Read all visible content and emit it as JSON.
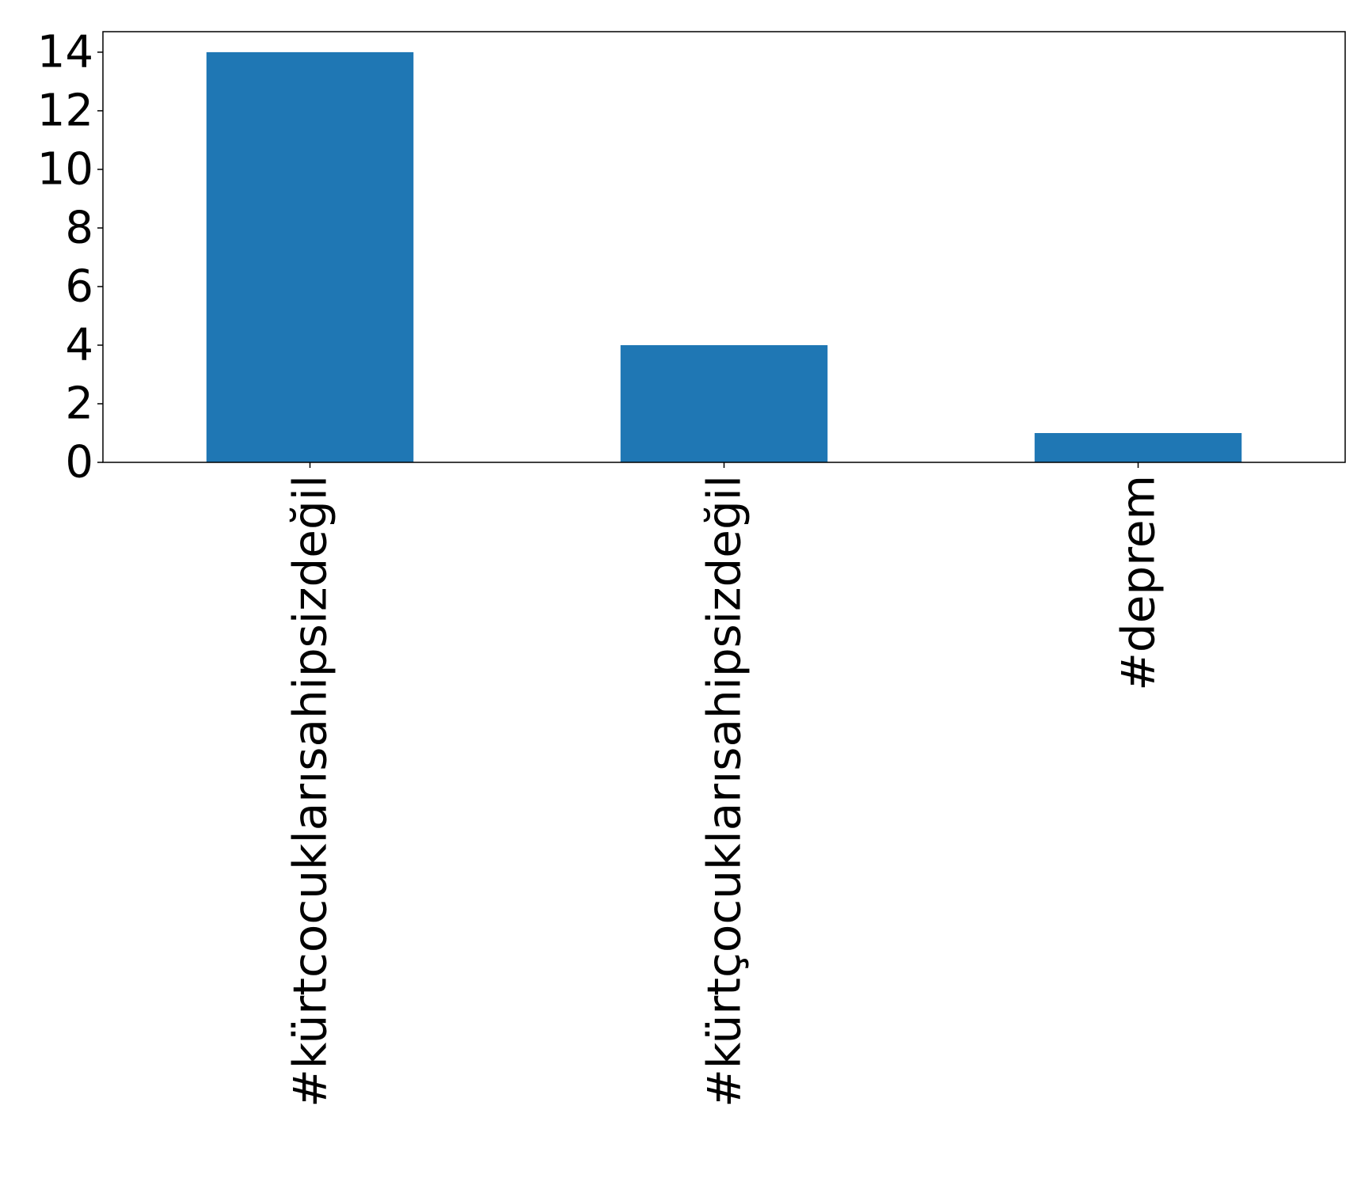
{
  "chart_data": {
    "type": "bar",
    "title": "",
    "xlabel": "",
    "ylabel": "",
    "categories": [
      "#kürtcocuklarısahipsizdeğil",
      "#kürtçocuklarısahipsizdeğil",
      "#deprem"
    ],
    "values": [
      14,
      4,
      1
    ],
    "ylim": [
      0,
      14.7
    ],
    "yticks": [
      0,
      2,
      4,
      6,
      8,
      10,
      12,
      14
    ],
    "bar_color": "#1f77b4",
    "grid": false,
    "legend": "none"
  }
}
